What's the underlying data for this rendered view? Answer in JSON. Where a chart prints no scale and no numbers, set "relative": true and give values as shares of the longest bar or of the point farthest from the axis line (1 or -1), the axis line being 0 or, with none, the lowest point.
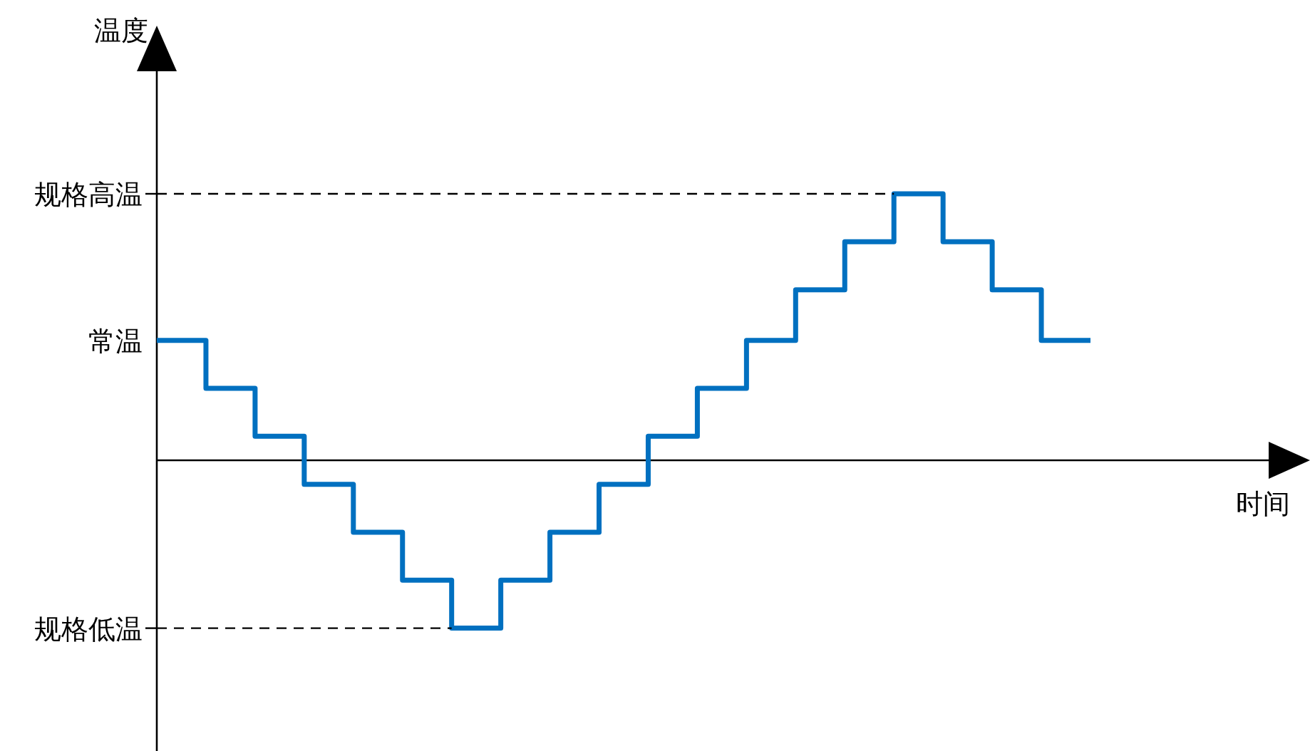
{
  "chart_data": {
    "type": "step",
    "relative": true,
    "xlabel": "时间",
    "categories": [
      null,
      null,
      null,
      null,
      null,
      null,
      null,
      null,
      null,
      null,
      null,
      null,
      null,
      null,
      null,
      null,
      null,
      null,
      null,
      null
    ],
    "series": [
      {
        "color": "#0070c0",
        "values": [
          0.45,
          0.27,
          0.09,
          -0.09,
          -0.27,
          -0.45,
          -0.63,
          -0.45,
          -0.27,
          -0.09,
          0.09,
          0.27,
          0.45,
          0.64,
          0.82,
          1,
          0.82,
          0.64,
          0.45,
          0.45
        ]
      }
    ],
    "ref_lines": [
      {
        "axis": "y",
        "value": 1,
        "label": "规格高温",
        "line_style": "dashed",
        "color": "#000000"
      },
      {
        "axis": "y",
        "value": -0.63,
        "label": "规格低温",
        "line_style": "dashed",
        "color": "#000000"
      }
    ],
    "annotations": [
      "常温",
      "温度"
    ],
    "grid": false
  }
}
